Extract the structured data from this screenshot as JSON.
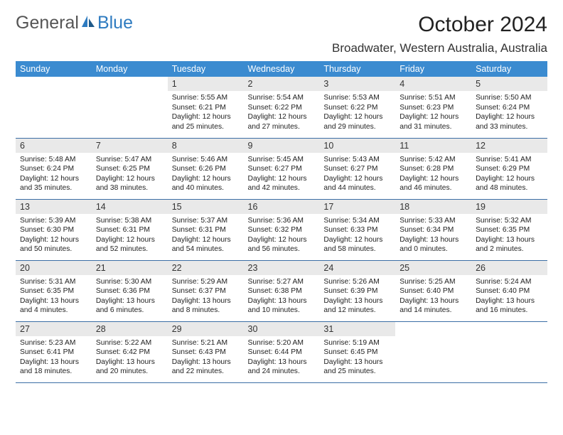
{
  "logo": {
    "text1": "General",
    "text2": "Blue"
  },
  "title": "October 2024",
  "location": "Broadwater, Western Australia, Australia",
  "colors": {
    "header_bg": "#3b8bd0",
    "header_text": "#ffffff",
    "daynum_bg": "#e9e9e9",
    "row_border": "#3b6ea5",
    "logo_accent": "#2e7bc0"
  },
  "weekdays": [
    "Sunday",
    "Monday",
    "Tuesday",
    "Wednesday",
    "Thursday",
    "Friday",
    "Saturday"
  ],
  "weeks": [
    [
      null,
      null,
      {
        "d": "1",
        "sr": "Sunrise: 5:55 AM",
        "ss": "Sunset: 6:21 PM",
        "dl1": "Daylight: 12 hours",
        "dl2": "and 25 minutes."
      },
      {
        "d": "2",
        "sr": "Sunrise: 5:54 AM",
        "ss": "Sunset: 6:22 PM",
        "dl1": "Daylight: 12 hours",
        "dl2": "and 27 minutes."
      },
      {
        "d": "3",
        "sr": "Sunrise: 5:53 AM",
        "ss": "Sunset: 6:22 PM",
        "dl1": "Daylight: 12 hours",
        "dl2": "and 29 minutes."
      },
      {
        "d": "4",
        "sr": "Sunrise: 5:51 AM",
        "ss": "Sunset: 6:23 PM",
        "dl1": "Daylight: 12 hours",
        "dl2": "and 31 minutes."
      },
      {
        "d": "5",
        "sr": "Sunrise: 5:50 AM",
        "ss": "Sunset: 6:24 PM",
        "dl1": "Daylight: 12 hours",
        "dl2": "and 33 minutes."
      }
    ],
    [
      {
        "d": "6",
        "sr": "Sunrise: 5:48 AM",
        "ss": "Sunset: 6:24 PM",
        "dl1": "Daylight: 12 hours",
        "dl2": "and 35 minutes."
      },
      {
        "d": "7",
        "sr": "Sunrise: 5:47 AM",
        "ss": "Sunset: 6:25 PM",
        "dl1": "Daylight: 12 hours",
        "dl2": "and 38 minutes."
      },
      {
        "d": "8",
        "sr": "Sunrise: 5:46 AM",
        "ss": "Sunset: 6:26 PM",
        "dl1": "Daylight: 12 hours",
        "dl2": "and 40 minutes."
      },
      {
        "d": "9",
        "sr": "Sunrise: 5:45 AM",
        "ss": "Sunset: 6:27 PM",
        "dl1": "Daylight: 12 hours",
        "dl2": "and 42 minutes."
      },
      {
        "d": "10",
        "sr": "Sunrise: 5:43 AM",
        "ss": "Sunset: 6:27 PM",
        "dl1": "Daylight: 12 hours",
        "dl2": "and 44 minutes."
      },
      {
        "d": "11",
        "sr": "Sunrise: 5:42 AM",
        "ss": "Sunset: 6:28 PM",
        "dl1": "Daylight: 12 hours",
        "dl2": "and 46 minutes."
      },
      {
        "d": "12",
        "sr": "Sunrise: 5:41 AM",
        "ss": "Sunset: 6:29 PM",
        "dl1": "Daylight: 12 hours",
        "dl2": "and 48 minutes."
      }
    ],
    [
      {
        "d": "13",
        "sr": "Sunrise: 5:39 AM",
        "ss": "Sunset: 6:30 PM",
        "dl1": "Daylight: 12 hours",
        "dl2": "and 50 minutes."
      },
      {
        "d": "14",
        "sr": "Sunrise: 5:38 AM",
        "ss": "Sunset: 6:31 PM",
        "dl1": "Daylight: 12 hours",
        "dl2": "and 52 minutes."
      },
      {
        "d": "15",
        "sr": "Sunrise: 5:37 AM",
        "ss": "Sunset: 6:31 PM",
        "dl1": "Daylight: 12 hours",
        "dl2": "and 54 minutes."
      },
      {
        "d": "16",
        "sr": "Sunrise: 5:36 AM",
        "ss": "Sunset: 6:32 PM",
        "dl1": "Daylight: 12 hours",
        "dl2": "and 56 minutes."
      },
      {
        "d": "17",
        "sr": "Sunrise: 5:34 AM",
        "ss": "Sunset: 6:33 PM",
        "dl1": "Daylight: 12 hours",
        "dl2": "and 58 minutes."
      },
      {
        "d": "18",
        "sr": "Sunrise: 5:33 AM",
        "ss": "Sunset: 6:34 PM",
        "dl1": "Daylight: 13 hours",
        "dl2": "and 0 minutes."
      },
      {
        "d": "19",
        "sr": "Sunrise: 5:32 AM",
        "ss": "Sunset: 6:35 PM",
        "dl1": "Daylight: 13 hours",
        "dl2": "and 2 minutes."
      }
    ],
    [
      {
        "d": "20",
        "sr": "Sunrise: 5:31 AM",
        "ss": "Sunset: 6:35 PM",
        "dl1": "Daylight: 13 hours",
        "dl2": "and 4 minutes."
      },
      {
        "d": "21",
        "sr": "Sunrise: 5:30 AM",
        "ss": "Sunset: 6:36 PM",
        "dl1": "Daylight: 13 hours",
        "dl2": "and 6 minutes."
      },
      {
        "d": "22",
        "sr": "Sunrise: 5:29 AM",
        "ss": "Sunset: 6:37 PM",
        "dl1": "Daylight: 13 hours",
        "dl2": "and 8 minutes."
      },
      {
        "d": "23",
        "sr": "Sunrise: 5:27 AM",
        "ss": "Sunset: 6:38 PM",
        "dl1": "Daylight: 13 hours",
        "dl2": "and 10 minutes."
      },
      {
        "d": "24",
        "sr": "Sunrise: 5:26 AM",
        "ss": "Sunset: 6:39 PM",
        "dl1": "Daylight: 13 hours",
        "dl2": "and 12 minutes."
      },
      {
        "d": "25",
        "sr": "Sunrise: 5:25 AM",
        "ss": "Sunset: 6:40 PM",
        "dl1": "Daylight: 13 hours",
        "dl2": "and 14 minutes."
      },
      {
        "d": "26",
        "sr": "Sunrise: 5:24 AM",
        "ss": "Sunset: 6:40 PM",
        "dl1": "Daylight: 13 hours",
        "dl2": "and 16 minutes."
      }
    ],
    [
      {
        "d": "27",
        "sr": "Sunrise: 5:23 AM",
        "ss": "Sunset: 6:41 PM",
        "dl1": "Daylight: 13 hours",
        "dl2": "and 18 minutes."
      },
      {
        "d": "28",
        "sr": "Sunrise: 5:22 AM",
        "ss": "Sunset: 6:42 PM",
        "dl1": "Daylight: 13 hours",
        "dl2": "and 20 minutes."
      },
      {
        "d": "29",
        "sr": "Sunrise: 5:21 AM",
        "ss": "Sunset: 6:43 PM",
        "dl1": "Daylight: 13 hours",
        "dl2": "and 22 minutes."
      },
      {
        "d": "30",
        "sr": "Sunrise: 5:20 AM",
        "ss": "Sunset: 6:44 PM",
        "dl1": "Daylight: 13 hours",
        "dl2": "and 24 minutes."
      },
      {
        "d": "31",
        "sr": "Sunrise: 5:19 AM",
        "ss": "Sunset: 6:45 PM",
        "dl1": "Daylight: 13 hours",
        "dl2": "and 25 minutes."
      },
      null,
      null
    ]
  ]
}
